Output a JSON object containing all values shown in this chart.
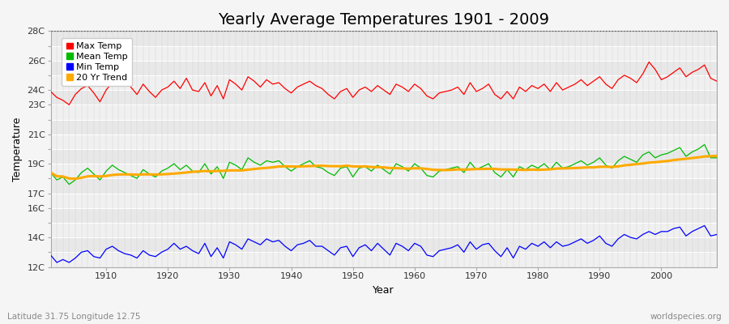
{
  "title": "Yearly Average Temperatures 1901 - 2009",
  "xlabel": "Year",
  "ylabel": "Temperature",
  "subtitle_left": "Latitude 31.75 Longitude 12.75",
  "subtitle_right": "worldspecies.org",
  "years": [
    1901,
    1902,
    1903,
    1904,
    1905,
    1906,
    1907,
    1908,
    1909,
    1910,
    1911,
    1912,
    1913,
    1914,
    1915,
    1916,
    1917,
    1918,
    1919,
    1920,
    1921,
    1922,
    1923,
    1924,
    1925,
    1926,
    1927,
    1928,
    1929,
    1930,
    1931,
    1932,
    1933,
    1934,
    1935,
    1936,
    1937,
    1938,
    1939,
    1940,
    1941,
    1942,
    1943,
    1944,
    1945,
    1946,
    1947,
    1948,
    1949,
    1950,
    1951,
    1952,
    1953,
    1954,
    1955,
    1956,
    1957,
    1958,
    1959,
    1960,
    1961,
    1962,
    1963,
    1964,
    1965,
    1966,
    1967,
    1968,
    1969,
    1970,
    1971,
    1972,
    1973,
    1974,
    1975,
    1976,
    1977,
    1978,
    1979,
    1980,
    1981,
    1982,
    1983,
    1984,
    1985,
    1986,
    1987,
    1988,
    1989,
    1990,
    1991,
    1992,
    1993,
    1994,
    1995,
    1996,
    1997,
    1998,
    1999,
    2000,
    2001,
    2002,
    2003,
    2004,
    2005,
    2006,
    2007,
    2008,
    2009
  ],
  "max_temp": [
    23.9,
    23.5,
    23.3,
    23.0,
    23.7,
    24.1,
    24.3,
    23.8,
    23.2,
    24.0,
    24.5,
    24.7,
    24.9,
    24.2,
    23.7,
    24.4,
    23.9,
    23.5,
    24.0,
    24.2,
    24.6,
    24.1,
    24.8,
    24.0,
    23.9,
    24.5,
    23.6,
    24.3,
    23.4,
    24.7,
    24.4,
    24.0,
    24.9,
    24.6,
    24.2,
    24.7,
    24.4,
    24.5,
    24.1,
    23.8,
    24.2,
    24.4,
    24.6,
    24.3,
    24.1,
    23.7,
    23.4,
    23.9,
    24.1,
    23.5,
    24.0,
    24.2,
    23.9,
    24.3,
    24.0,
    23.7,
    24.4,
    24.2,
    23.9,
    24.4,
    24.1,
    23.6,
    23.4,
    23.8,
    23.9,
    24.0,
    24.2,
    23.7,
    24.5,
    23.9,
    24.1,
    24.4,
    23.7,
    23.4,
    23.9,
    23.4,
    24.2,
    23.9,
    24.3,
    24.1,
    24.4,
    23.9,
    24.5,
    24.0,
    24.2,
    24.4,
    24.7,
    24.3,
    24.6,
    24.9,
    24.4,
    24.1,
    24.7,
    25.0,
    24.8,
    24.5,
    25.1,
    25.9,
    25.4,
    24.7,
    24.9,
    25.2,
    25.5,
    24.9,
    25.2,
    25.4,
    25.7,
    24.8,
    24.6
  ],
  "mean_temp": [
    18.4,
    17.9,
    18.1,
    17.6,
    17.9,
    18.4,
    18.7,
    18.3,
    17.9,
    18.5,
    18.9,
    18.6,
    18.4,
    18.2,
    18.0,
    18.6,
    18.3,
    18.1,
    18.5,
    18.7,
    19.0,
    18.6,
    18.9,
    18.5,
    18.4,
    19.0,
    18.3,
    18.8,
    18.0,
    19.1,
    18.9,
    18.6,
    19.4,
    19.1,
    18.9,
    19.2,
    19.1,
    19.2,
    18.8,
    18.5,
    18.8,
    19.0,
    19.2,
    18.8,
    18.7,
    18.4,
    18.2,
    18.7,
    18.8,
    18.1,
    18.7,
    18.8,
    18.5,
    18.9,
    18.6,
    18.3,
    19.0,
    18.8,
    18.5,
    19.0,
    18.7,
    18.2,
    18.1,
    18.5,
    18.6,
    18.7,
    18.8,
    18.4,
    19.1,
    18.6,
    18.8,
    19.0,
    18.4,
    18.1,
    18.6,
    18.1,
    18.8,
    18.6,
    18.9,
    18.7,
    19.0,
    18.6,
    19.1,
    18.7,
    18.8,
    19.0,
    19.2,
    18.9,
    19.1,
    19.4,
    18.9,
    18.7,
    19.2,
    19.5,
    19.3,
    19.1,
    19.6,
    19.8,
    19.4,
    19.6,
    19.7,
    19.9,
    20.1,
    19.5,
    19.8,
    20.0,
    20.3,
    19.4,
    19.4
  ],
  "min_temp": [
    12.8,
    12.3,
    12.5,
    12.3,
    12.6,
    13.0,
    13.1,
    12.7,
    12.6,
    13.2,
    13.4,
    13.1,
    12.9,
    12.8,
    12.6,
    13.1,
    12.8,
    12.7,
    13.0,
    13.2,
    13.6,
    13.2,
    13.4,
    13.1,
    12.9,
    13.6,
    12.7,
    13.3,
    12.6,
    13.7,
    13.5,
    13.2,
    13.9,
    13.7,
    13.5,
    13.9,
    13.7,
    13.8,
    13.4,
    13.1,
    13.5,
    13.6,
    13.8,
    13.4,
    13.4,
    13.1,
    12.8,
    13.3,
    13.4,
    12.7,
    13.3,
    13.5,
    13.1,
    13.6,
    13.2,
    12.8,
    13.6,
    13.4,
    13.1,
    13.6,
    13.4,
    12.8,
    12.7,
    13.1,
    13.2,
    13.3,
    13.5,
    13.0,
    13.7,
    13.2,
    13.5,
    13.6,
    13.1,
    12.7,
    13.3,
    12.6,
    13.4,
    13.2,
    13.6,
    13.4,
    13.7,
    13.3,
    13.7,
    13.4,
    13.5,
    13.7,
    13.9,
    13.6,
    13.8,
    14.1,
    13.6,
    13.4,
    13.9,
    14.2,
    14.0,
    13.9,
    14.2,
    14.4,
    14.2,
    14.4,
    14.4,
    14.6,
    14.7,
    14.1,
    14.4,
    14.6,
    14.8,
    14.1,
    14.2
  ],
  "ylim": [
    12,
    28
  ],
  "ytick_positions": [
    12,
    13,
    14,
    15,
    16,
    17,
    18,
    19,
    20,
    21,
    22,
    23,
    24,
    25,
    26,
    27,
    28
  ],
  "ytick_labels_shown": [
    12,
    14,
    16,
    17,
    19,
    21,
    23,
    24,
    26,
    28
  ],
  "ytick_label_strs": [
    "12C",
    "14C",
    "16C",
    "17C",
    "19C",
    "21C",
    "23C",
    "24C",
    "26C",
    "28C"
  ],
  "xticks": [
    1910,
    1920,
    1930,
    1940,
    1950,
    1960,
    1970,
    1980,
    1990,
    2000
  ],
  "fig_bg_color": "#f5f5f5",
  "plot_bg_color": "#e8e8e8",
  "stripe_color": "#f0f0f0",
  "grid_v_color": "#d0d0d0",
  "max_color": "#ff0000",
  "mean_color": "#00bb00",
  "min_color": "#0000ff",
  "trend_color": "#ffaa00",
  "title_fontsize": 14,
  "axis_label_fontsize": 9,
  "tick_fontsize": 8,
  "legend_fontsize": 8,
  "trend_window": 20
}
